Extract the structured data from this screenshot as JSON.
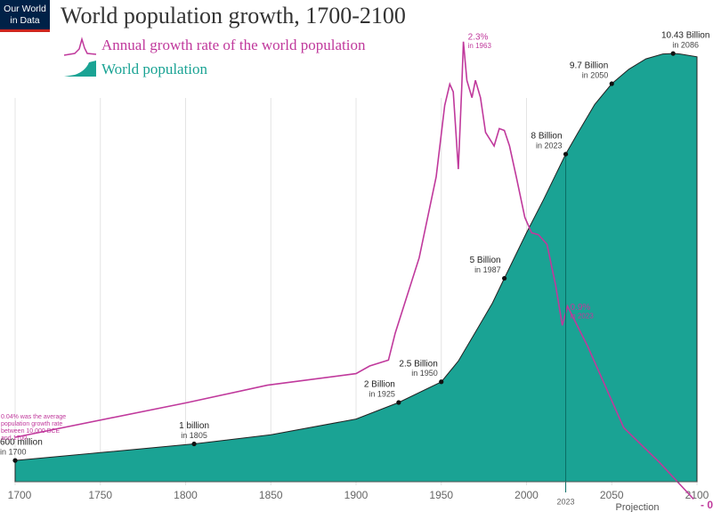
{
  "chart_data": {
    "type": "area-line",
    "logo": [
      "Our World",
      "in Data"
    ],
    "title": "World population growth, 1700-2100",
    "xlim": [
      1700,
      2100
    ],
    "xticks": [
      1700,
      1750,
      1800,
      1850,
      1900,
      1950,
      2000,
      2050,
      2100
    ],
    "ylim": [
      0,
      11.4
    ],
    "y2lim": [
      -0.1,
      2.35
    ],
    "grid": true,
    "series": [
      {
        "name": "World population",
        "type": "area",
        "color": "#1aa394",
        "x": [
          1700,
          1750,
          1800,
          1805,
          1850,
          1900,
          1925,
          1950,
          1960,
          1970,
          1980,
          1987,
          2000,
          2010,
          2023,
          2030,
          2040,
          2050,
          2060,
          2070,
          2080,
          2086,
          2090,
          2100
        ],
        "values": [
          0.6,
          0.79,
          0.98,
          1.0,
          1.22,
          1.6,
          2.0,
          2.5,
          3.0,
          3.7,
          4.4,
          5.0,
          6.1,
          6.9,
          8.0,
          8.5,
          9.2,
          9.7,
          10.05,
          10.3,
          10.42,
          10.43,
          10.42,
          10.35
        ]
      },
      {
        "name": "Annual growth rate of the world population",
        "type": "line",
        "axis": "y2",
        "color": "#c0399c",
        "x": [
          1700,
          1801,
          1848,
          1900,
          1908,
          1919,
          1923,
          1937,
          1947,
          1952,
          1955,
          1957,
          1960,
          1962,
          1963,
          1965,
          1968,
          1970,
          1973,
          1976,
          1981,
          1984,
          1987,
          1990,
          1994,
          1999,
          2003,
          2007,
          2012,
          2017,
          2021,
          2024,
          2028,
          2036,
          2057,
          2078,
          2098
        ],
        "values": [
          0.25,
          0.43,
          0.52,
          0.58,
          0.62,
          0.65,
          0.79,
          1.18,
          1.6,
          1.97,
          2.08,
          2.04,
          1.64,
          2.06,
          2.3,
          2.1,
          2.01,
          2.1,
          2.01,
          1.83,
          1.76,
          1.85,
          1.84,
          1.76,
          1.6,
          1.39,
          1.31,
          1.3,
          1.25,
          1.04,
          0.83,
          0.93,
          0.86,
          0.72,
          0.3,
          0.12,
          -0.07
        ]
      }
    ],
    "milestones": [
      {
        "x": 1700,
        "value": 0.6,
        "label": "600 million",
        "sub": "in 1700"
      },
      {
        "x": 1805,
        "value": 1.0,
        "label": "1 billion",
        "sub": "in 1805"
      },
      {
        "x": 1925,
        "value": 2.0,
        "label": "2 Billion",
        "sub": "in 1925"
      },
      {
        "x": 1950,
        "value": 2.5,
        "label": "2.5 Billion",
        "sub": "in 1950"
      },
      {
        "x": 1987,
        "value": 5.0,
        "label": "5 Billion",
        "sub": "in 1987"
      },
      {
        "x": 2023,
        "value": 8.0,
        "label": "8 Billion",
        "sub": "in 2023"
      },
      {
        "x": 2050,
        "value": 9.7,
        "label": "9.7 Billion",
        "sub": "in 2050"
      },
      {
        "x": 2086,
        "value": 10.43,
        "label": "10.43 Billion",
        "sub": "in 2086"
      }
    ],
    "rate_notes": [
      {
        "x": 1963,
        "value": 2.3,
        "label": "2.3%",
        "sub": "in 1963"
      },
      {
        "x": 2023,
        "value": 0.9,
        "label": "0.9%",
        "sub": "in 2023"
      }
    ],
    "rate_note": [
      "0.04% was the average",
      "population growth rate",
      "between 10,000 BCE",
      "and 1700"
    ],
    "end_label": "- 0",
    "projection_start": {
      "value": 2023,
      "label": "2023"
    },
    "projection_label": "Projection"
  }
}
